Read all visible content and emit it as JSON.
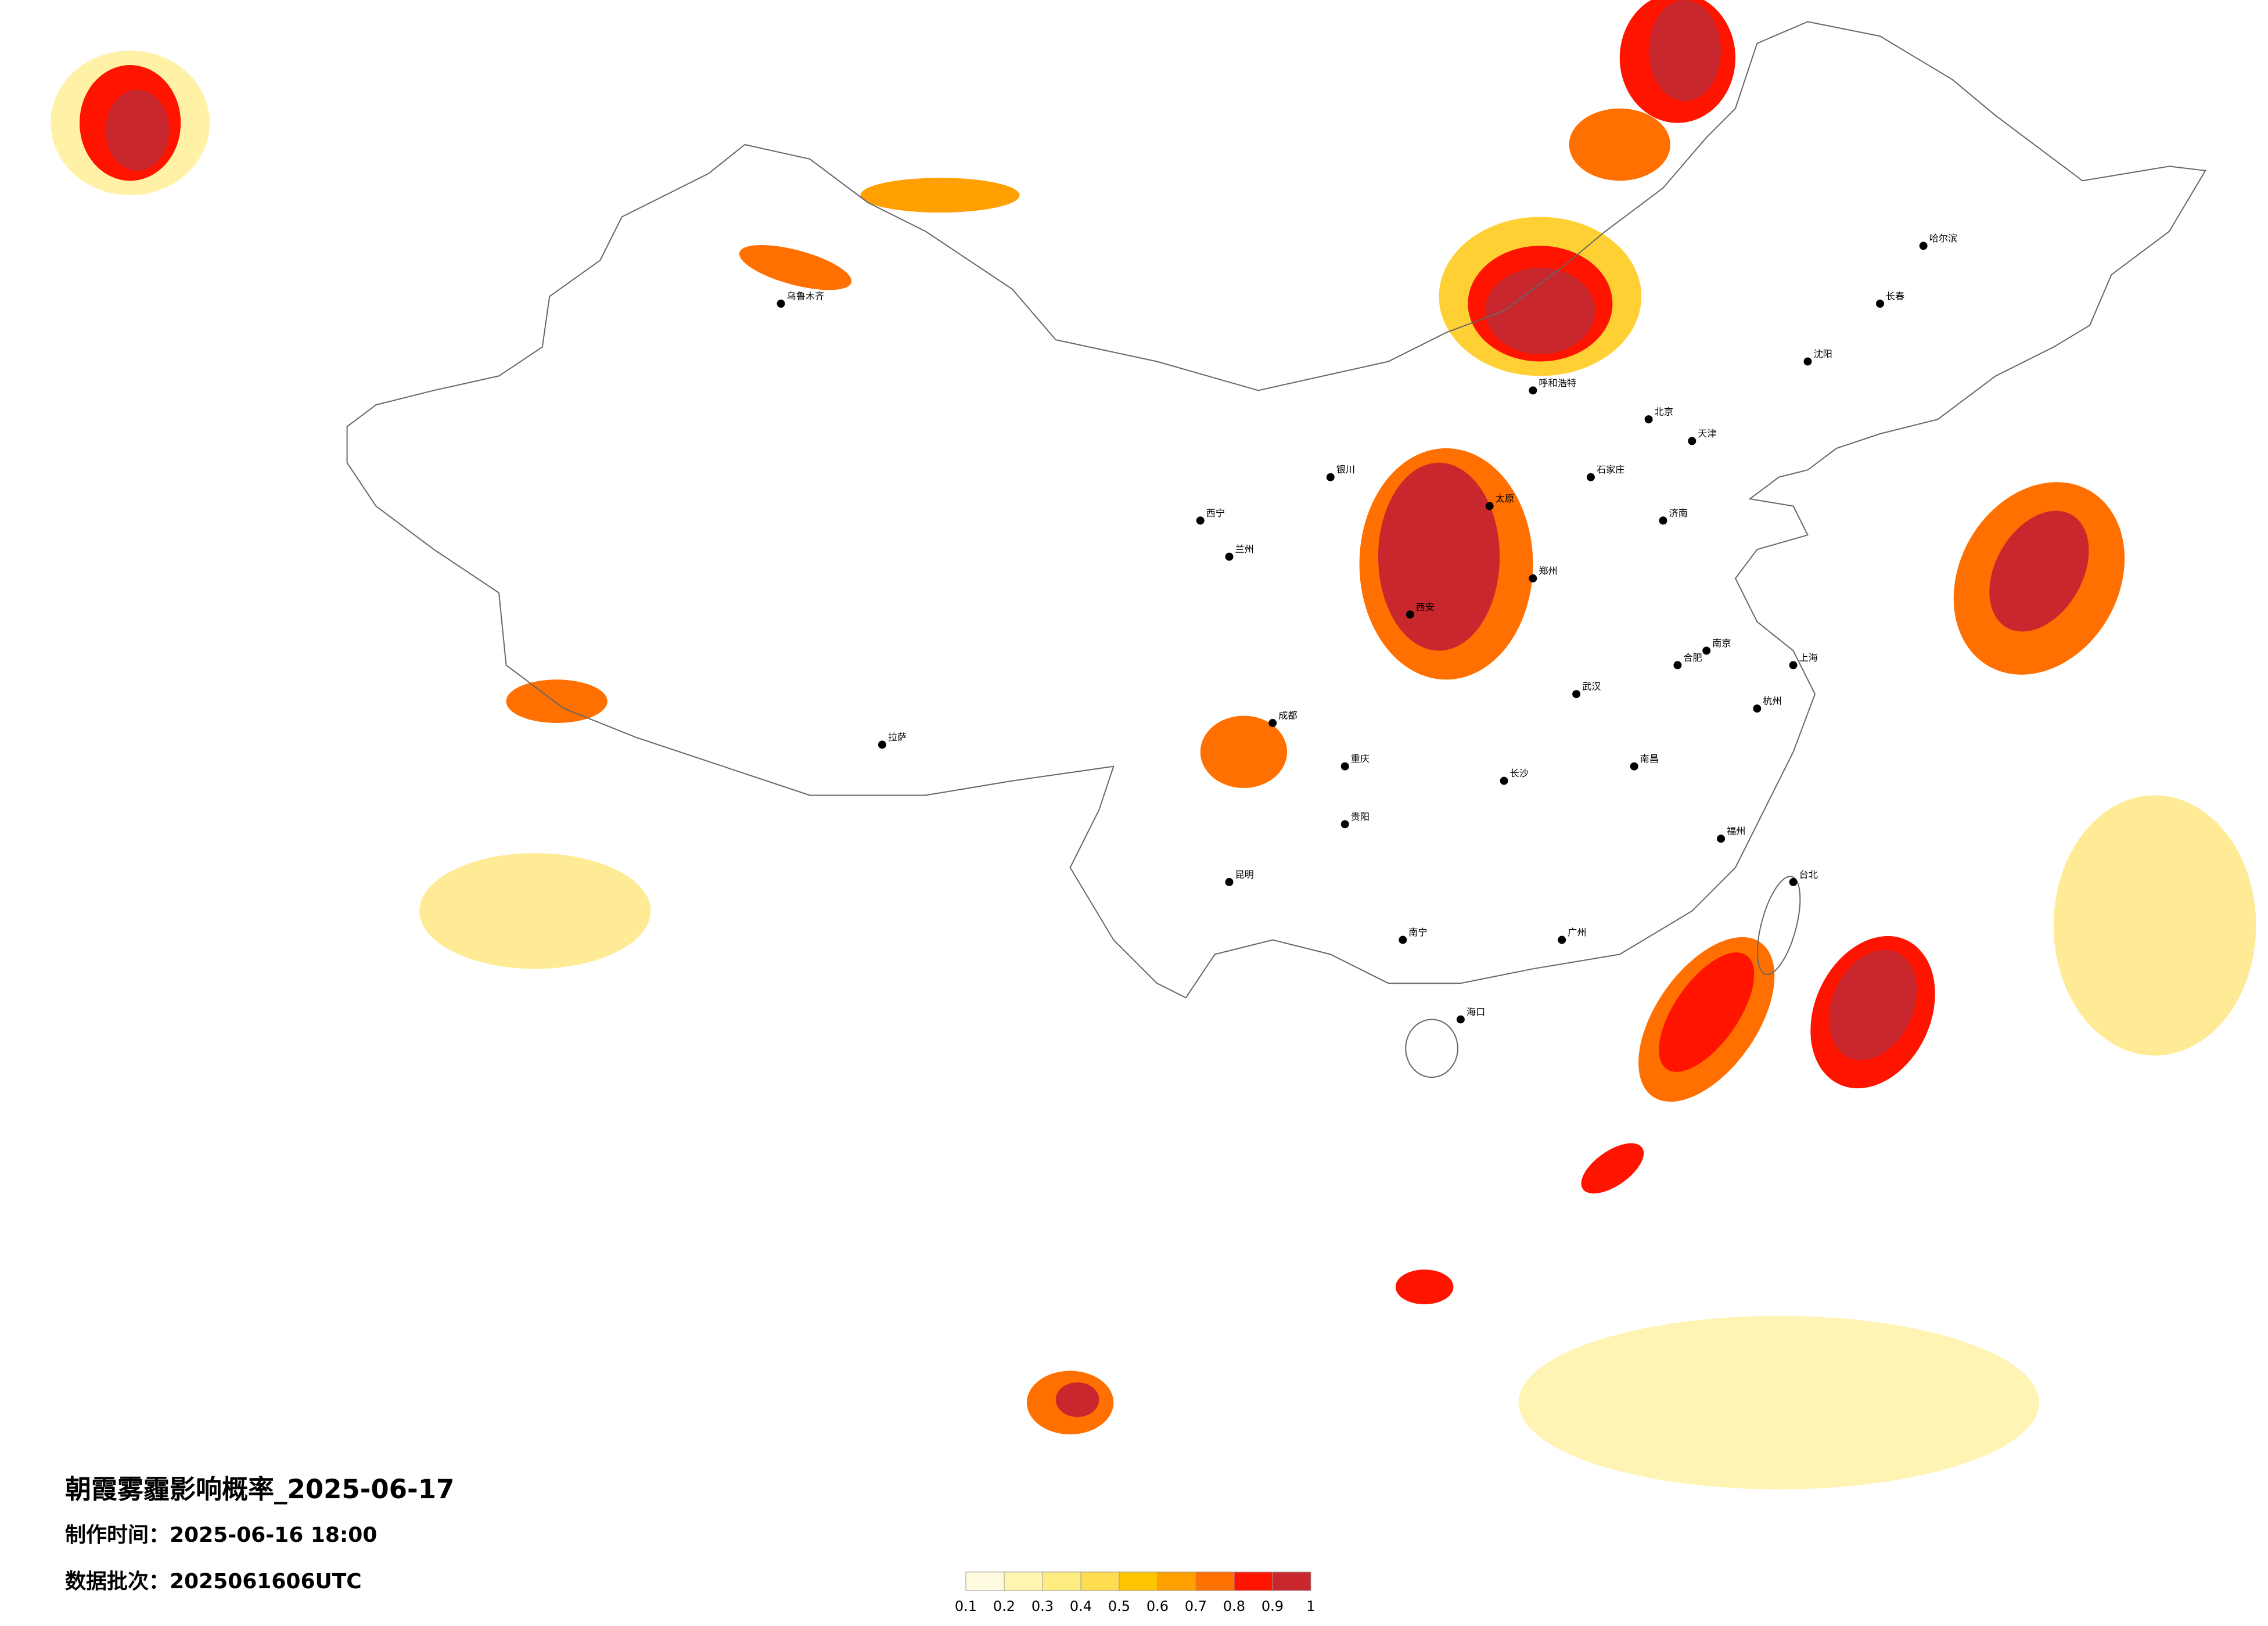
{
  "title": "朝霞雾霾影响概率_2025-06-17",
  "made_time": "制作时间：2025-06-16 18:00",
  "batch": "数据批次：2025061606UTC",
  "legend": {
    "labels": [
      "0.1",
      "0.2",
      "0.3",
      "0.4",
      "0.5",
      "0.6",
      "0.7",
      "0.8",
      "0.9",
      "1"
    ],
    "colors": [
      "#fffbe0",
      "#fff5b0",
      "#ffec80",
      "#ffdc50",
      "#ffc400",
      "#ffa000",
      "#ff7000",
      "#ff1400",
      "#c8282d"
    ]
  },
  "cities": [
    "乌鲁木齐",
    "拉萨",
    "西宁",
    "兰州",
    "成都",
    "重庆",
    "昆明",
    "贵阳",
    "南宁",
    "广州",
    "海口",
    "长沙",
    "武汉",
    "郑州",
    "西安",
    "太原",
    "石家庄",
    "北京",
    "天津",
    "济南",
    "南京",
    "上海",
    "杭州",
    "福州",
    "台北",
    "沈阳",
    "长春",
    "哈尔滨",
    "呼和浩特",
    "银川",
    "南昌",
    "合肥"
  ]
}
